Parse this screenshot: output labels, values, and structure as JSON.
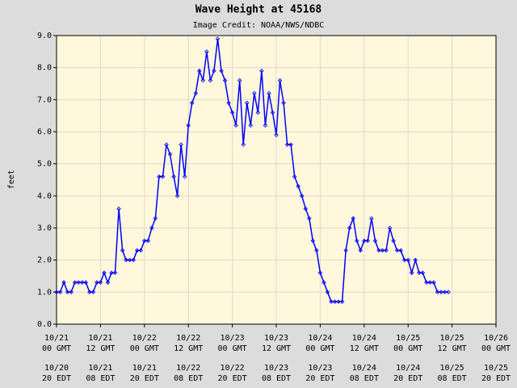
{
  "chart_data": {
    "type": "line",
    "title": "Wave Height at 45168",
    "subtitle": "Image Credit: NOAA/NWS/NDBC",
    "y_label": "feet",
    "grid": true,
    "plot_background": "#fff8dc",
    "xlim": [
      0,
      120
    ],
    "xticks": [
      {
        "value": 0,
        "label": "10/21"
      },
      {
        "value": 12,
        "label": "10/21"
      },
      {
        "value": 24,
        "label": "10/22"
      },
      {
        "value": 36,
        "label": "10/22"
      },
      {
        "value": 48,
        "label": "10/23"
      },
      {
        "value": 60,
        "label": "10/23"
      },
      {
        "value": 72,
        "label": "10/24"
      },
      {
        "value": 84,
        "label": "10/24"
      },
      {
        "value": 96,
        "label": "10/25"
      },
      {
        "value": 108,
        "label": "10/25"
      },
      {
        "value": 120,
        "label": "10/26"
      }
    ],
    "xtick_times": [
      "00 GMT",
      "12 GMT",
      "00 GMT",
      "12 GMT",
      "00 GMT",
      "12 GMT",
      "00 GMT",
      "12 GMT",
      "00 GMT",
      "12 GMT",
      "00 GMT"
    ],
    "xtick_local_dates": [
      "10/20",
      "10/21",
      "10/21",
      "10/22",
      "10/22",
      "10/23",
      "10/23",
      "10/24",
      "10/24",
      "10/25",
      "10/25"
    ],
    "xtick_local_times": [
      "20 EDT",
      "08 EDT",
      "20 EDT",
      "08 EDT",
      "20 EDT",
      "08 EDT",
      "20 EDT",
      "08 EDT",
      "20 EDT",
      "08 EDT",
      "20 EDT"
    ],
    "ylim": [
      0,
      9
    ],
    "yticks": [
      {
        "value": 0,
        "label": "0.0"
      },
      {
        "value": 1,
        "label": "1.0"
      },
      {
        "value": 2,
        "label": "2.0"
      },
      {
        "value": 3,
        "label": "3.0"
      },
      {
        "value": 4,
        "label": "4.0"
      },
      {
        "value": 5,
        "label": "5.0"
      },
      {
        "value": 6,
        "label": "6.0"
      },
      {
        "value": 7,
        "label": "7.0"
      },
      {
        "value": 8,
        "label": "8.0"
      },
      {
        "value": 9,
        "label": "9.0"
      }
    ],
    "x": [
      0,
      1,
      2,
      3,
      4,
      5,
      6,
      7,
      8,
      9,
      10,
      11,
      12,
      13,
      14,
      15,
      16,
      17,
      18,
      19,
      20,
      21,
      22,
      23,
      24,
      25,
      26,
      27,
      28,
      29,
      30,
      31,
      32,
      33,
      34,
      35,
      36,
      37,
      38,
      39,
      40,
      41,
      42,
      43,
      44,
      45,
      46,
      47,
      48,
      49,
      50,
      51,
      52,
      53,
      54,
      55,
      56,
      57,
      58,
      59,
      60,
      61,
      62,
      63,
      64,
      65,
      66,
      67,
      68,
      69,
      70,
      71,
      72,
      73,
      74,
      75,
      76,
      77,
      78,
      79,
      80,
      81,
      82,
      83,
      84,
      85,
      86,
      87,
      88,
      89,
      90,
      91,
      92,
      93,
      94,
      95,
      96,
      97,
      98,
      99,
      100,
      101,
      102,
      103,
      104,
      105,
      106,
      107
    ],
    "series": [
      {
        "color": "#0000ff",
        "values": [
          1.0,
          1.0,
          1.3,
          1.0,
          1.0,
          1.3,
          1.3,
          1.3,
          1.3,
          1.0,
          1.0,
          1.3,
          1.3,
          1.6,
          1.3,
          1.6,
          1.6,
          3.6,
          2.3,
          2.0,
          2.0,
          2.0,
          2.3,
          2.3,
          2.6,
          2.6,
          3.0,
          3.3,
          4.6,
          4.6,
          5.6,
          5.3,
          4.6,
          4.0,
          5.6,
          4.6,
          6.2,
          6.9,
          7.2,
          7.9,
          7.6,
          8.5,
          7.6,
          7.9,
          8.9,
          7.9,
          7.6,
          6.9,
          6.6,
          6.2,
          7.6,
          5.6,
          6.9,
          6.2,
          7.2,
          6.6,
          7.9,
          6.2,
          7.2,
          6.6,
          5.9,
          7.6,
          6.9,
          5.6,
          5.6,
          4.6,
          4.3,
          4.0,
          3.6,
          3.3,
          2.6,
          2.3,
          1.6,
          1.3,
          1.0,
          0.7,
          0.7,
          0.7,
          0.7,
          2.3,
          3.0,
          3.3,
          2.6,
          2.3,
          2.6,
          2.6,
          3.3,
          2.6,
          2.3,
          2.3,
          2.3,
          3.0,
          2.6,
          2.3,
          2.3,
          2.0,
          2.0,
          1.6,
          2.0,
          1.6,
          1.6,
          1.3,
          1.3,
          1.3,
          1.0,
          1.0,
          1.0,
          1.0
        ]
      }
    ]
  }
}
